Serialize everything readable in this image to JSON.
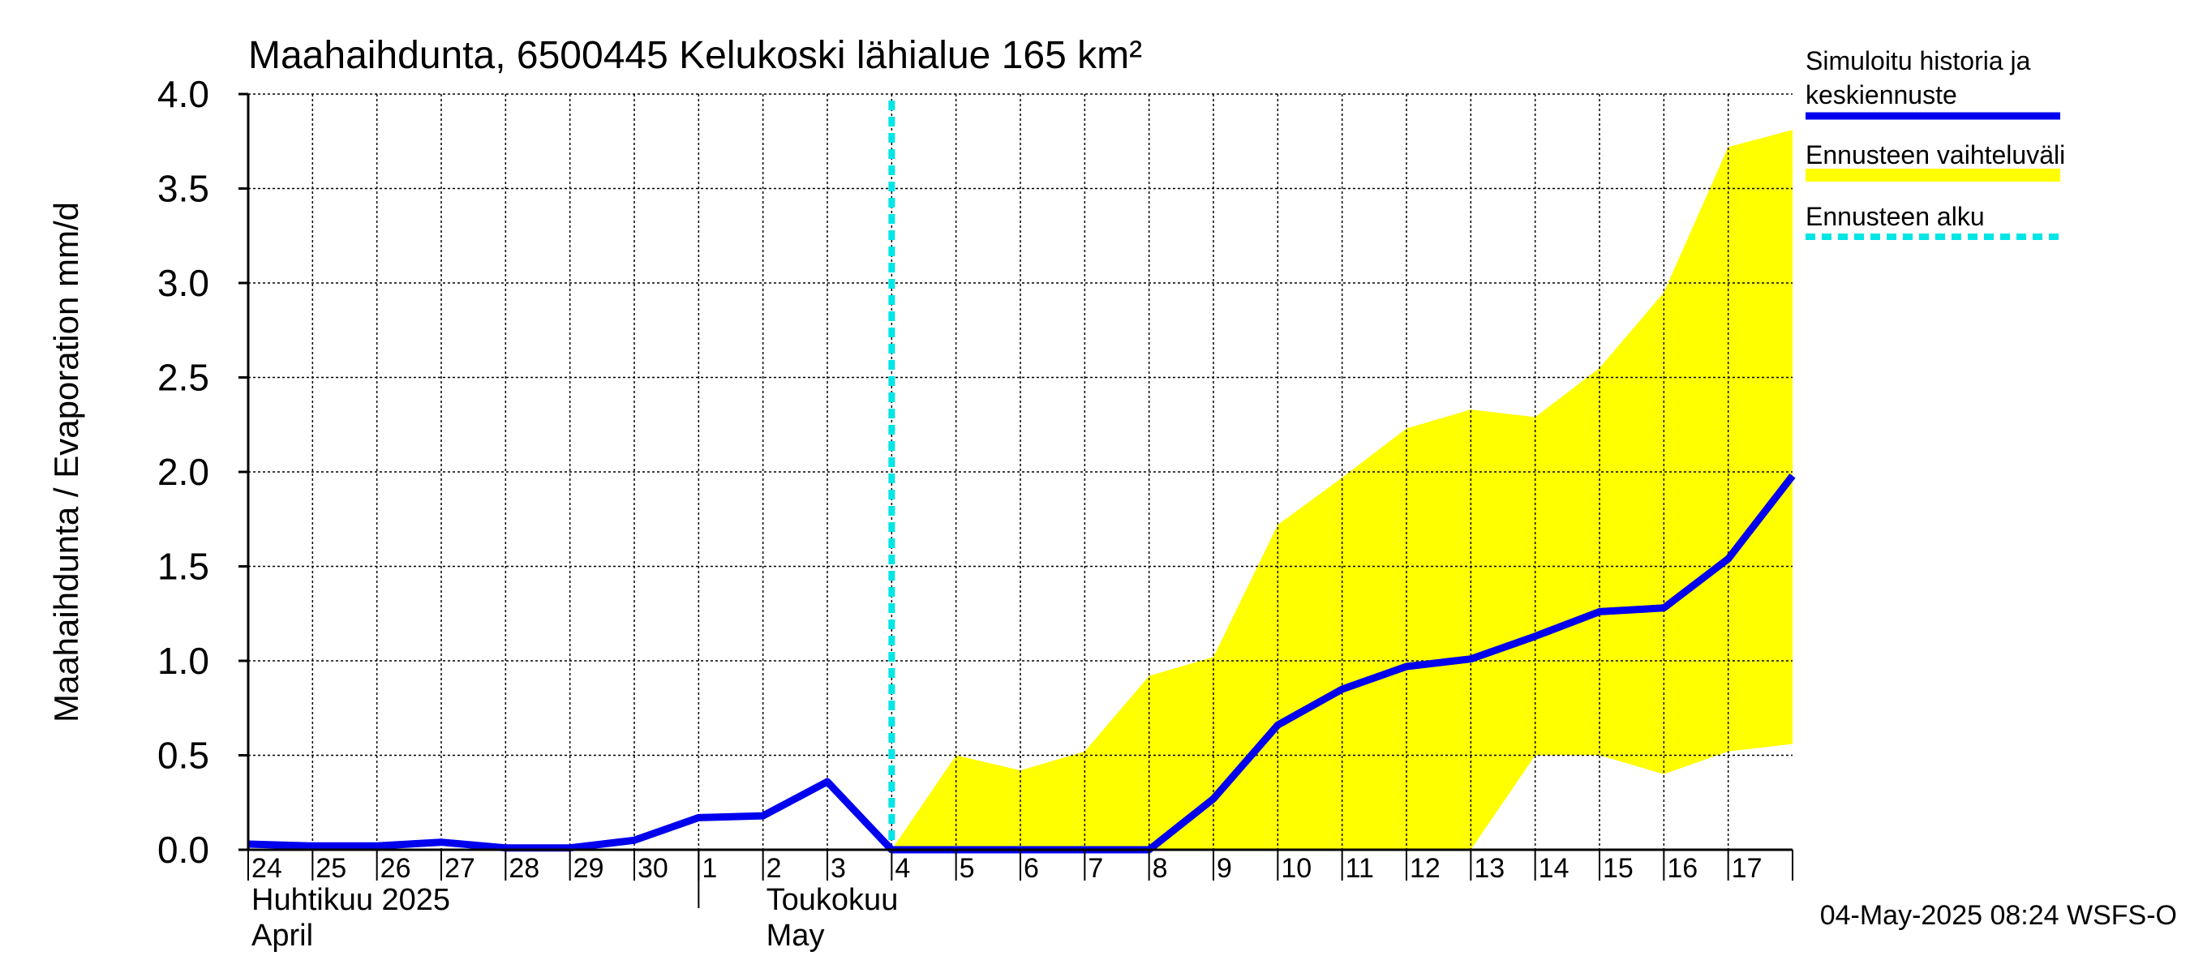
{
  "chart_data": {
    "type": "line",
    "title": "Maahaihdunta, 6500445 Kelukoski lähialue 165 km²",
    "ylabel": "Maahaihdunta / Evaporation   mm/d",
    "ylim": [
      0,
      4.0
    ],
    "yticks": [
      "0.0",
      "0.5",
      "1.0",
      "1.5",
      "2.0",
      "2.5",
      "3.0",
      "3.5",
      "4.0"
    ],
    "x_day_labels": [
      "24",
      "25",
      "26",
      "27",
      "28",
      "29",
      "30",
      "1",
      "2",
      "3",
      "4",
      "5",
      "6",
      "7",
      "8",
      "9",
      "10",
      "11",
      "12",
      "13",
      "14",
      "15",
      "16",
      "17"
    ],
    "month_labels": [
      {
        "line1": "Huhtikuu  2025",
        "line2": "April"
      },
      {
        "line1": "Toukokuu",
        "line2": "May"
      }
    ],
    "x": [
      "2025-04-24",
      "2025-04-25",
      "2025-04-26",
      "2025-04-27",
      "2025-04-28",
      "2025-04-29",
      "2025-04-30",
      "2025-05-01",
      "2025-05-02",
      "2025-05-03",
      "2025-05-04",
      "2025-05-05",
      "2025-05-06",
      "2025-05-07",
      "2025-05-08",
      "2025-05-09",
      "2025-05-10",
      "2025-05-11",
      "2025-05-12",
      "2025-05-13",
      "2025-05-14",
      "2025-05-15",
      "2025-05-16",
      "2025-05-17",
      "2025-05-18"
    ],
    "series": [
      {
        "name": "Simuloitu historia ja keskiennuste",
        "color": "#0000ee",
        "values": [
          0.03,
          0.02,
          0.02,
          0.04,
          0.01,
          0.01,
          0.05,
          0.17,
          0.18,
          0.36,
          0.0,
          0.0,
          0.0,
          0.0,
          0.0,
          0.27,
          0.66,
          0.85,
          0.97,
          1.01,
          1.13,
          1.26,
          1.28,
          1.54,
          1.98
        ]
      }
    ],
    "band": {
      "name": "Ennusteen vaihteluväli",
      "color": "#ffff00",
      "x": [
        "2025-05-04",
        "2025-05-05",
        "2025-05-06",
        "2025-05-07",
        "2025-05-08",
        "2025-05-09",
        "2025-05-10",
        "2025-05-11",
        "2025-05-12",
        "2025-05-13",
        "2025-05-14",
        "2025-05-15",
        "2025-05-16",
        "2025-05-17",
        "2025-05-18"
      ],
      "upper": [
        0.0,
        0.5,
        0.42,
        0.52,
        0.92,
        1.02,
        1.72,
        1.97,
        2.23,
        2.33,
        2.29,
        2.55,
        2.95,
        3.72,
        3.81
      ],
      "lower": [
        0.0,
        0.0,
        0.0,
        0.0,
        0.0,
        0.0,
        0.0,
        0.0,
        0.0,
        0.0,
        0.5,
        0.5,
        0.4,
        0.52,
        0.56
      ]
    },
    "forecast_start": {
      "name": "Ennusteen alku",
      "color": "#00e5e5",
      "x": "2025-05-04"
    },
    "legend": {
      "placement": "right",
      "items": [
        {
          "text_line1": "Simuloitu historia ja",
          "text_line2": "keskiennuste",
          "style": "line",
          "color": "#0000ee"
        },
        {
          "text_line1": "Ennusteen vaihteluväli",
          "text_line2": "",
          "style": "band",
          "color": "#ffff00"
        },
        {
          "text_line1": "Ennusteen alku",
          "text_line2": "",
          "style": "dashed",
          "color": "#00e5e5"
        }
      ]
    },
    "grid": true,
    "footer": "04-May-2025 08:24 WSFS-O"
  }
}
